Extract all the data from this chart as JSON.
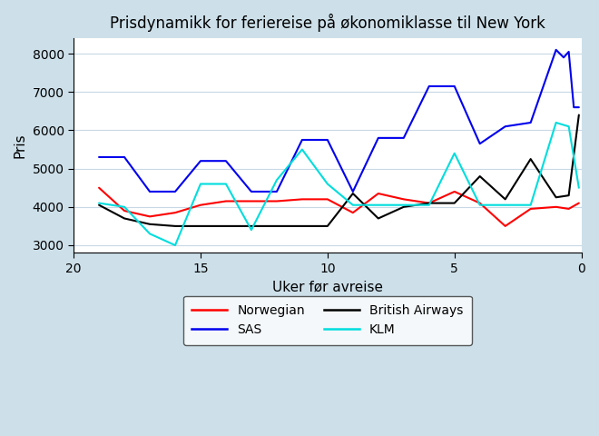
{
  "title": "Prisdynamikk for feriereise på økonomiklasse til New York",
  "xlabel": "Uker før avreise",
  "ylabel": "Pris",
  "background_color": "#cde0ea",
  "plot_background": "#ffffff",
  "ylim": [
    2800,
    8400
  ],
  "xlim": [
    20,
    0
  ],
  "yticks": [
    3000,
    4000,
    5000,
    6000,
    7000,
    8000
  ],
  "xticks": [
    20,
    15,
    10,
    5,
    0
  ],
  "series": {
    "Norwegian": {
      "color": "#ff0000",
      "x": [
        19,
        18,
        17,
        16,
        15,
        14,
        13,
        12,
        11,
        10,
        9,
        8,
        7,
        6,
        5,
        4,
        3,
        2,
        1,
        0.5,
        0.1
      ],
      "y": [
        4500,
        3900,
        3750,
        3850,
        4050,
        4150,
        4150,
        4150,
        4200,
        4200,
        3850,
        4350,
        4200,
        4100,
        4400,
        4100,
        3500,
        3950,
        4000,
        3950,
        4100
      ]
    },
    "British Airways": {
      "color": "#000000",
      "x": [
        19,
        18,
        17,
        16,
        15,
        14,
        13,
        12,
        11,
        10,
        9,
        8,
        7,
        6,
        5,
        4,
        3,
        2,
        1,
        0.5,
        0.1
      ],
      "y": [
        4050,
        3700,
        3550,
        3500,
        3500,
        3500,
        3500,
        3500,
        3500,
        3500,
        4350,
        3700,
        4000,
        4100,
        4100,
        4800,
        4200,
        5250,
        4250,
        4300,
        6400
      ]
    },
    "SAS": {
      "color": "#0000ee",
      "x": [
        19,
        18,
        17,
        16,
        15,
        14,
        13,
        12,
        11,
        10,
        9,
        8,
        7,
        6,
        5,
        4,
        3,
        2,
        1,
        0.7,
        0.5,
        0.3,
        0.1
      ],
      "y": [
        5300,
        5300,
        4400,
        4400,
        5200,
        5200,
        4400,
        4400,
        5750,
        5750,
        4400,
        5800,
        5800,
        7150,
        7150,
        5650,
        6100,
        6200,
        8100,
        7900,
        8050,
        6600,
        6600
      ]
    },
    "KLM": {
      "color": "#00dddd",
      "x": [
        19,
        18,
        17,
        16,
        15,
        14,
        13,
        12,
        11,
        10,
        9,
        8,
        7,
        6,
        5,
        4,
        3,
        2,
        1,
        0.5,
        0.1
      ],
      "y": [
        4100,
        4000,
        3300,
        3000,
        4600,
        4600,
        3400,
        4700,
        5500,
        4600,
        4050,
        4050,
        4050,
        4050,
        5400,
        4050,
        4050,
        4050,
        6200,
        6100,
        4500
      ]
    }
  }
}
